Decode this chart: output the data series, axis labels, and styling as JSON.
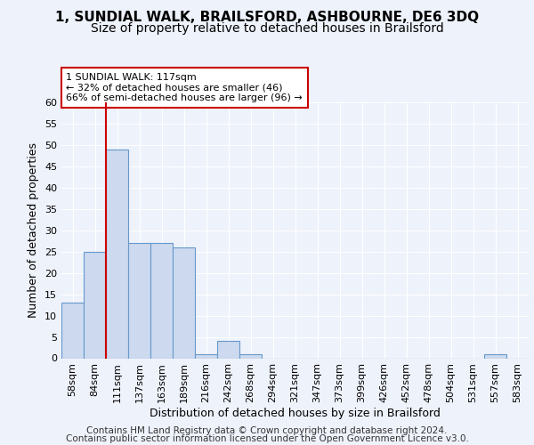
{
  "title_line1": "1, SUNDIAL WALK, BRAILSFORD, ASHBOURNE, DE6 3DQ",
  "title_line2": "Size of property relative to detached houses in Brailsford",
  "xlabel": "Distribution of detached houses by size in Brailsford",
  "ylabel": "Number of detached properties",
  "categories": [
    "58sqm",
    "84sqm",
    "111sqm",
    "137sqm",
    "163sqm",
    "189sqm",
    "216sqm",
    "242sqm",
    "268sqm",
    "294sqm",
    "321sqm",
    "347sqm",
    "373sqm",
    "399sqm",
    "426sqm",
    "452sqm",
    "478sqm",
    "504sqm",
    "531sqm",
    "557sqm",
    "583sqm"
  ],
  "values": [
    13,
    25,
    49,
    27,
    27,
    26,
    1,
    4,
    1,
    0,
    0,
    0,
    0,
    0,
    0,
    0,
    0,
    0,
    0,
    1,
    0
  ],
  "bar_color": "#ccd9ee",
  "bar_edge_color": "#6699cc",
  "marker_color": "#cc0000",
  "annotation_text": "1 SUNDIAL WALK: 117sqm\n← 32% of detached houses are smaller (46)\n66% of semi-detached houses are larger (96) →",
  "annotation_box_facecolor": "white",
  "annotation_box_edgecolor": "#cc0000",
  "ylim": [
    0,
    60
  ],
  "yticks": [
    0,
    5,
    10,
    15,
    20,
    25,
    30,
    35,
    40,
    45,
    50,
    55,
    60
  ],
  "fig_bg_color": "#eef2fb",
  "plot_bg_color": "#eef2fb",
  "grid_color": "white",
  "title_fontsize": 11,
  "subtitle_fontsize": 10,
  "axis_label_fontsize": 9,
  "tick_fontsize": 8,
  "annotation_fontsize": 8,
  "footer_fontsize": 7.5,
  "footer_text1": "Contains HM Land Registry data © Crown copyright and database right 2024.",
  "footer_text2": "Contains public sector information licensed under the Open Government Licence v3.0."
}
